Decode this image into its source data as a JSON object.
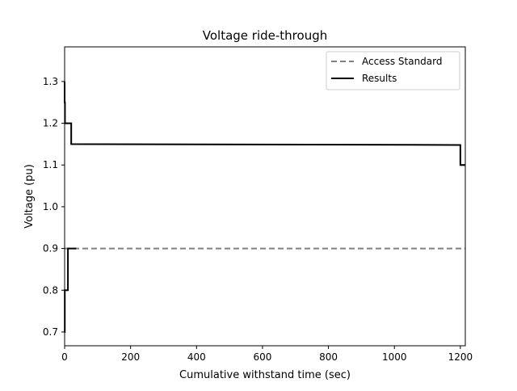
{
  "chart_data": {
    "type": "line",
    "title": "Voltage ride-through",
    "xlabel": "Cumulative withstand time (sec)",
    "ylabel": "Voltage (pu)",
    "xlim": [
      0,
      1215
    ],
    "ylim": [
      0.667,
      1.383
    ],
    "xticks": [
      0,
      200,
      400,
      600,
      800,
      1000,
      1200
    ],
    "yticks": [
      0.7,
      0.8,
      0.9,
      1.0,
      1.1,
      1.2,
      1.3
    ],
    "xtick_labels": [
      "0",
      "200",
      "400",
      "600",
      "800",
      "1000",
      "1200"
    ],
    "ytick_labels": [
      "0.7",
      "0.8",
      "0.9",
      "1.0",
      "1.1",
      "1.2",
      "1.3"
    ],
    "grid": false,
    "legend_position": "top-right",
    "series": [
      {
        "name": "Access Standard",
        "color": "#808080",
        "dash": "dashed",
        "segments": [
          [
            [
              0,
              0.9
            ],
            [
              1215,
              0.9
            ]
          ],
          [
            [
              1200,
              1.1
            ],
            [
              1215,
              1.1
            ]
          ]
        ]
      },
      {
        "name": "Results",
        "color": "#000000",
        "dash": "solid",
        "segments": [
          [
            [
              0,
              1.3
            ],
            [
              0,
              1.25
            ],
            [
              1,
              1.25
            ],
            [
              1,
              1.2
            ],
            [
              20,
              1.2
            ],
            [
              20,
              1.15
            ],
            [
              1200,
              1.148
            ],
            [
              1200,
              1.1
            ],
            [
              1215,
              1.1
            ]
          ],
          [
            [
              0,
              0.7
            ],
            [
              0.5,
              0.7
            ],
            [
              0.5,
              0.8
            ],
            [
              10,
              0.8
            ],
            [
              10,
              0.9
            ],
            [
              35,
              0.9
            ]
          ]
        ]
      }
    ]
  }
}
